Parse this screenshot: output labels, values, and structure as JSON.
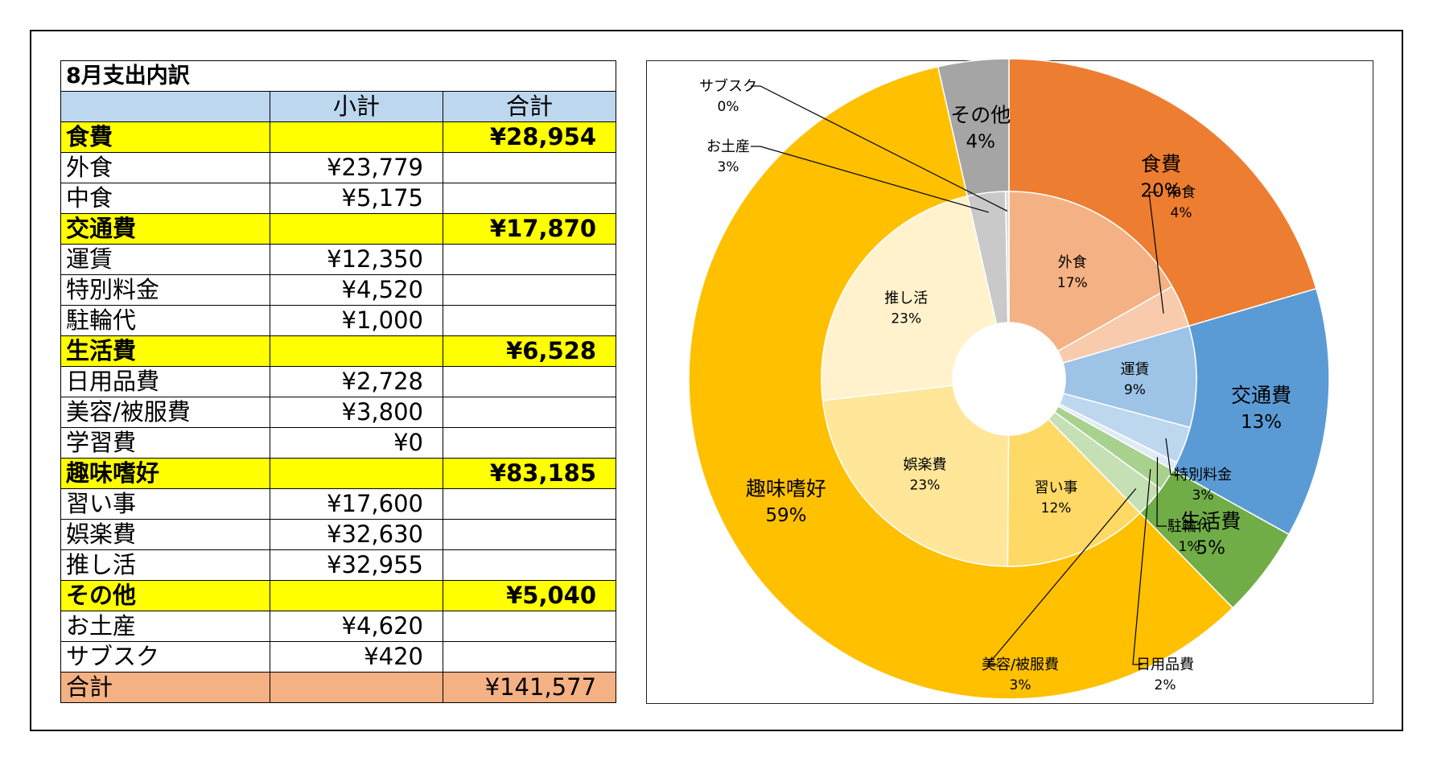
{
  "table": {
    "title": "8月支出内訳",
    "headers": [
      "",
      "小計",
      "合計"
    ],
    "rows": [
      {
        "kind": "cat",
        "name": "食費",
        "sub": "",
        "total": "¥28,954"
      },
      {
        "kind": "item",
        "name": "外食",
        "sub": "¥23,779",
        "total": ""
      },
      {
        "kind": "item",
        "name": "中食",
        "sub": "¥5,175",
        "total": ""
      },
      {
        "kind": "cat",
        "name": "交通費",
        "sub": "",
        "total": "¥17,870"
      },
      {
        "kind": "item",
        "name": "運賃",
        "sub": "¥12,350",
        "total": ""
      },
      {
        "kind": "item",
        "name": "特別料金",
        "sub": "¥4,520",
        "total": ""
      },
      {
        "kind": "item",
        "name": "駐輪代",
        "sub": "¥1,000",
        "total": ""
      },
      {
        "kind": "cat",
        "name": "生活費",
        "sub": "",
        "total": "¥6,528"
      },
      {
        "kind": "item",
        "name": "日用品費",
        "sub": "¥2,728",
        "total": ""
      },
      {
        "kind": "item",
        "name": "美容/被服費",
        "sub": "¥3,800",
        "total": ""
      },
      {
        "kind": "item",
        "name": "学習費",
        "sub": "¥0",
        "total": ""
      },
      {
        "kind": "cat",
        "name": "趣味嗜好",
        "sub": "",
        "total": "¥83,185"
      },
      {
        "kind": "item",
        "name": "習い事",
        "sub": "¥17,600",
        "total": ""
      },
      {
        "kind": "item",
        "name": "娯楽費",
        "sub": "¥32,630",
        "total": ""
      },
      {
        "kind": "item",
        "name": "推し活",
        "sub": "¥32,955",
        "total": ""
      },
      {
        "kind": "cat",
        "name": "その他",
        "sub": "",
        "total": "¥5,040"
      },
      {
        "kind": "item",
        "name": "お土産",
        "sub": "¥4,620",
        "total": ""
      },
      {
        "kind": "item",
        "name": "サブスク",
        "sub": "¥420",
        "total": ""
      },
      {
        "kind": "total",
        "name": "合計",
        "sub": "",
        "total": "¥141,577"
      }
    ]
  },
  "chart_data": {
    "type": "pie",
    "subtype": "nested-donut",
    "title": "",
    "outer": [
      {
        "label": "食費",
        "value": 28954,
        "pct": "20%",
        "color": "#ed7d31"
      },
      {
        "label": "交通費",
        "value": 17870,
        "pct": "13%",
        "color": "#5b9bd5"
      },
      {
        "label": "生活費",
        "value": 6528,
        "pct": "5%",
        "color": "#70ad47"
      },
      {
        "label": "趣味嗜好",
        "value": 83185,
        "pct": "59%",
        "color": "#ffc000"
      },
      {
        "label": "その他",
        "value": 5040,
        "pct": "4%",
        "color": "#a5a5a5"
      }
    ],
    "inner": [
      {
        "label": "外食",
        "value": 23779,
        "pct": "17%",
        "color": "#f4b183",
        "label_mode": "inside"
      },
      {
        "label": "中食",
        "value": 5175,
        "pct": "4%",
        "color": "#f8cbad",
        "label_mode": "leader"
      },
      {
        "label": "運賃",
        "value": 12350,
        "pct": "9%",
        "color": "#9dc3e6",
        "label_mode": "inside"
      },
      {
        "label": "特別料金",
        "value": 4520,
        "pct": "3%",
        "color": "#bdd7ee",
        "label_mode": "leader"
      },
      {
        "label": "駐輪代",
        "value": 1000,
        "pct": "1%",
        "color": "#deebf7",
        "label_mode": "leader"
      },
      {
        "label": "日用品費",
        "value": 2728,
        "pct": "2%",
        "color": "#a9d18e",
        "label_mode": "leader"
      },
      {
        "label": "美容/被服費",
        "value": 3800,
        "pct": "3%",
        "color": "#c5e0b4",
        "label_mode": "leader"
      },
      {
        "label": "学習費",
        "value": 0,
        "pct": "0%",
        "color": "#e2f0d9",
        "label_mode": "none"
      },
      {
        "label": "習い事",
        "value": 17600,
        "pct": "12%",
        "color": "#ffd966",
        "label_mode": "inside"
      },
      {
        "label": "娯楽費",
        "value": 32630,
        "pct": "23%",
        "color": "#ffe699",
        "label_mode": "inside"
      },
      {
        "label": "推し活",
        "value": 32955,
        "pct": "23%",
        "color": "#fff2cc",
        "label_mode": "inside"
      },
      {
        "label": "お土産",
        "value": 4620,
        "pct": "3%",
        "color": "#c9c9c9",
        "label_mode": "leader"
      },
      {
        "label": "サブスク",
        "value": 420,
        "pct": "0%",
        "color": "#dbdbdb",
        "label_mode": "leader"
      }
    ]
  }
}
